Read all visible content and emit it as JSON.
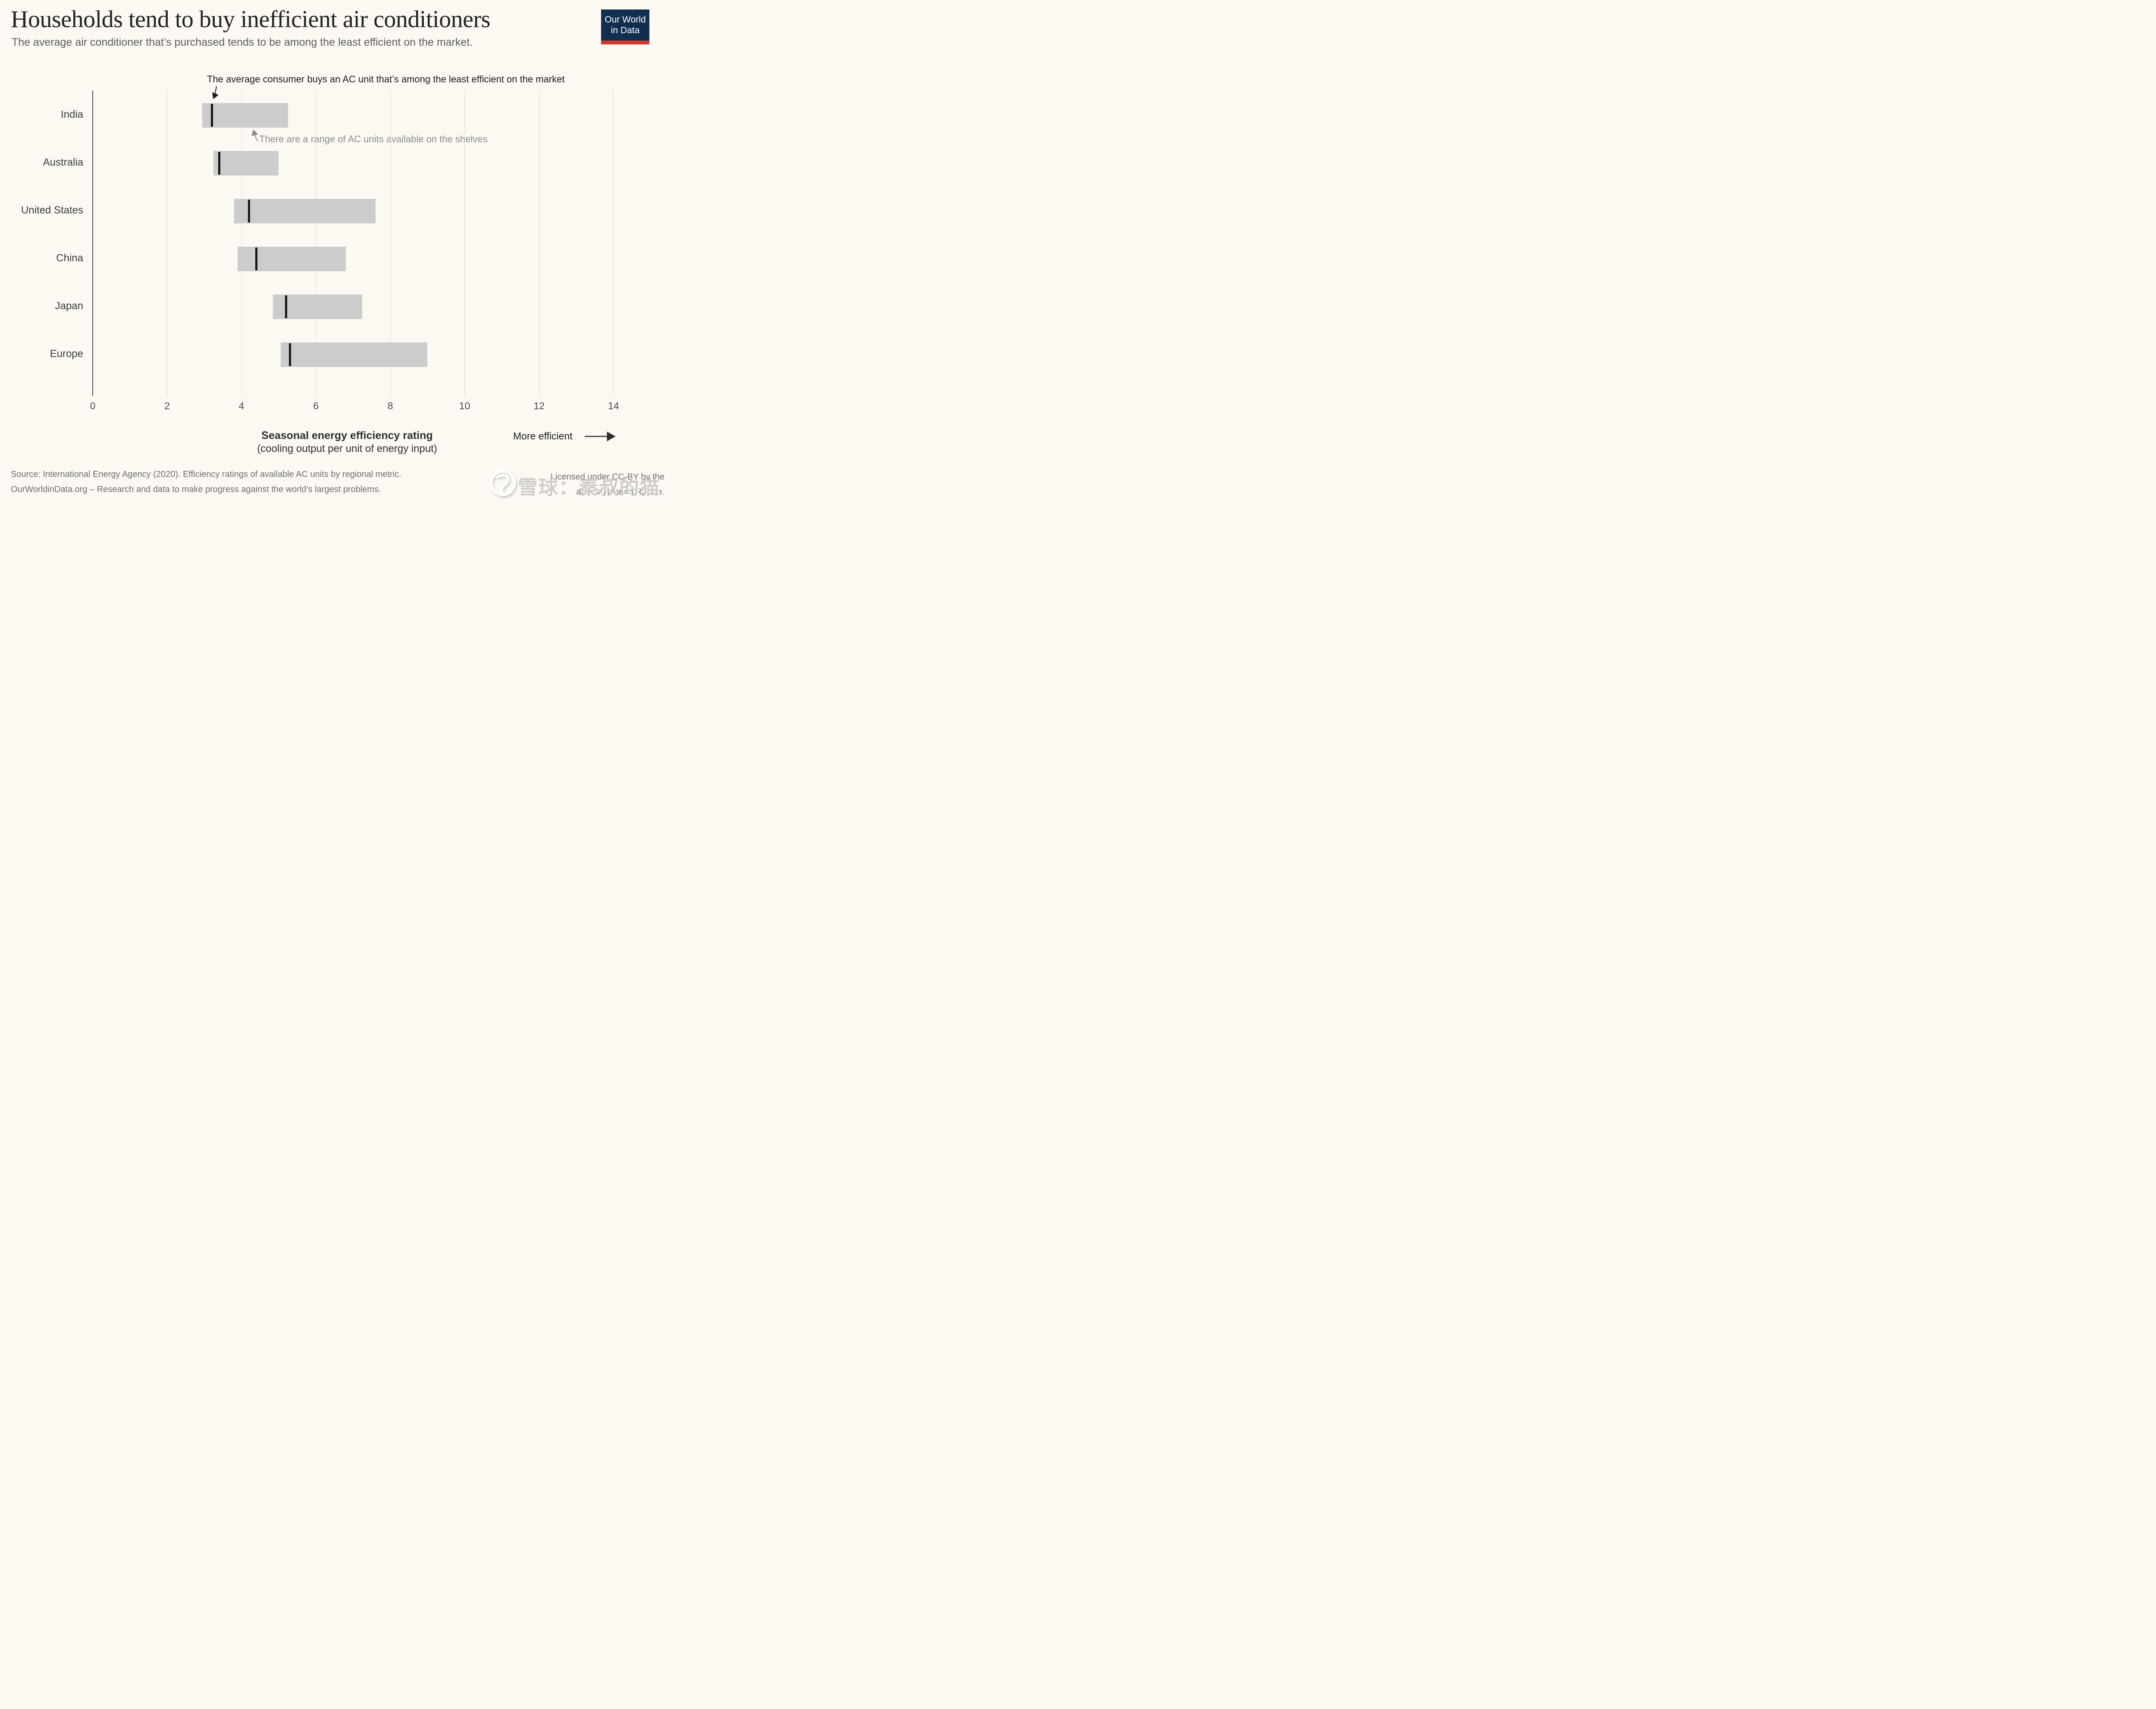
{
  "header": {
    "title": "Households tend to buy inefficient air conditioners",
    "subtitle": "The average air conditioner that’s purchased tends to be among the least efficient on the market.",
    "logo": {
      "line1": "Our World",
      "line2": "in Data"
    }
  },
  "annotations": {
    "top_note": "The average consumer buys an AC unit that’s among the least efficient on the market",
    "range_note": "There are a range of AC units available on the shelves"
  },
  "chart_data": {
    "type": "bar",
    "subtype": "horizontal-range-with-marker",
    "orientation": "horizontal",
    "title": "Households tend to buy inefficient air conditioners",
    "categories": [
      "India",
      "Australia",
      "United States",
      "China",
      "Japan",
      "Europe"
    ],
    "series": [
      {
        "name": "Market range minimum (least efficient unit available)",
        "values": [
          2.95,
          3.25,
          3.8,
          3.9,
          4.85,
          5.05
        ]
      },
      {
        "name": "Market range maximum (most efficient unit available)",
        "values": [
          5.25,
          5.0,
          7.6,
          6.8,
          7.25,
          9.0
        ]
      },
      {
        "name": "Average purchased unit",
        "values": [
          3.2,
          3.4,
          4.2,
          4.4,
          5.2,
          5.3
        ]
      }
    ],
    "xlabel": "Seasonal energy efficiency rating (cooling output per unit of energy input)",
    "ylabel": "",
    "xlim": [
      0,
      14
    ],
    "xticks": [
      0,
      2,
      4,
      6,
      8,
      10,
      12,
      14
    ],
    "grid": "vertical",
    "legend": "none"
  },
  "axis": {
    "title_line1": "Seasonal energy efficiency rating",
    "title_line2": "(cooling output per unit of energy input)",
    "more_efficient_label": "More efficient"
  },
  "footer": {
    "source_line": "Source: International Energy Agency (2020). Efficiency ratings of available AC units by regional metric.",
    "owid_line": "OurWorldinData.org – Research and data to make progress against the world’s largest problems.",
    "license_line1": "Licensed under CC-BY by the",
    "license_line2": "author Hannah Ritchie.",
    "watermark_text": "雪球：秦叔的猫"
  },
  "colors": {
    "background": "#fbf9f2",
    "bar": "#cccccc",
    "average_marker": "#161616",
    "gridline": "#dcd9d1",
    "axis_line": "#565656",
    "logo_navy": "#112e51",
    "logo_red": "#cf3a2d",
    "annotation_gray": "#8c8c8c",
    "footer_gray": "#6e6e6e"
  }
}
